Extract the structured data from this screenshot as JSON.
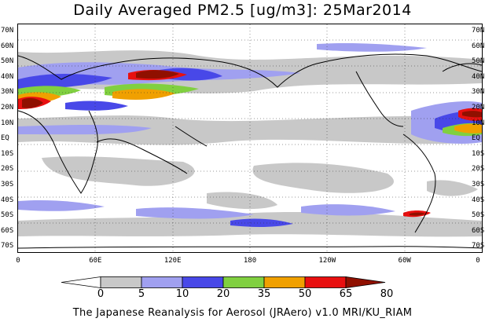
{
  "title": "Daily Averaged PM2.5 [ug/m3]: 25Mar2014",
  "lat_labels": [
    "70N",
    "60N",
    "50N",
    "40N",
    "30N",
    "20N",
    "10N",
    "EQ",
    "10S",
    "20S",
    "30S",
    "40S",
    "50S",
    "60S",
    "70S"
  ],
  "lon_labels": [
    "0",
    "60E",
    "120E",
    "180",
    "120W",
    "60W",
    "0"
  ],
  "colorbar": {
    "levels": [
      "0",
      "5",
      "10",
      "20",
      "35",
      "50",
      "65",
      "80"
    ],
    "colors": [
      "#ffffff",
      "#c8c8c8",
      "#a0a0f0",
      "#4848e8",
      "#80d040",
      "#f0a000",
      "#e81010",
      "#901000"
    ]
  },
  "footer": "The Japanese Reanalysis for Aerosol (JRAero) v1.0 MRI/KU_RIAM"
}
